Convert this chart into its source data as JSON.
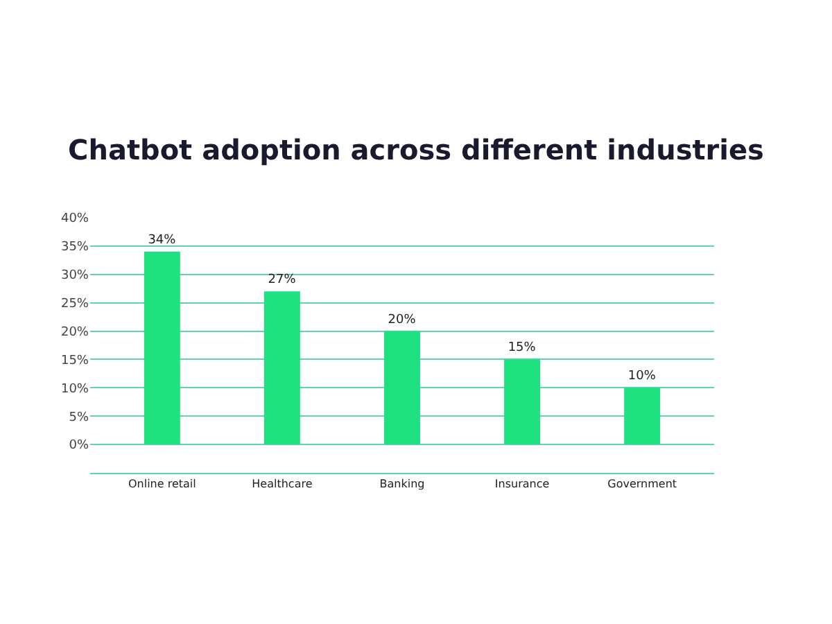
{
  "chart_data": {
    "type": "bar",
    "title": "Chatbot adoption across different industries",
    "categories": [
      "Online retail",
      "Healthcare",
      "Banking",
      "Insurance",
      "Government"
    ],
    "values": [
      34,
      27,
      20,
      15,
      10
    ],
    "color": "#1ee27f",
    "value_labels": [
      "34%",
      "27%",
      "20%",
      "15%",
      "10%"
    ],
    "ylim": [
      -5,
      40
    ],
    "yticks": [
      {
        "value": -5,
        "label": null
      },
      {
        "value": 0,
        "label": "0%"
      },
      {
        "value": 5,
        "label": "5%"
      },
      {
        "value": 10,
        "label": "10%"
      },
      {
        "value": 15,
        "label": "15%"
      },
      {
        "value": 20,
        "label": "20%"
      },
      {
        "value": 25,
        "label": "25%"
      },
      {
        "value": 30,
        "label": "30%"
      },
      {
        "value": 35,
        "label": "35%"
      },
      {
        "value": 40,
        "label": "40%"
      }
    ],
    "grid": "y",
    "legend": false
  }
}
